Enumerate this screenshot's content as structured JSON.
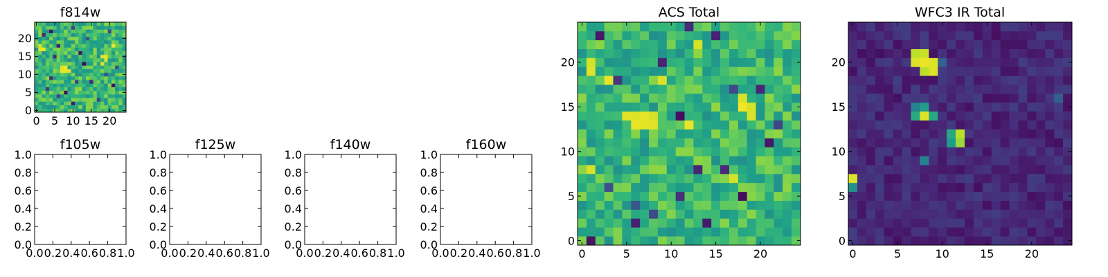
{
  "chart_data": [
    {
      "type": "heatmap",
      "title": "f814w",
      "grid_size": [
        25,
        25
      ],
      "colormap": "viridis",
      "value_range": [
        0,
        1
      ],
      "xlim": [
        -0.5,
        24.5
      ],
      "ylim": [
        -0.5,
        24.5
      ],
      "xticks": [
        0,
        5,
        10,
        15,
        20
      ],
      "yticks": [
        0,
        5,
        10,
        15,
        20
      ],
      "hot_cells": [
        [
          1,
          18
        ],
        [
          1,
          17
        ],
        [
          2,
          17
        ],
        [
          7,
          12
        ],
        [
          8,
          12
        ],
        [
          7,
          11
        ],
        [
          8,
          11
        ],
        [
          9,
          11
        ],
        [
          18,
          15
        ],
        [
          19,
          15
        ],
        [
          19,
          14
        ],
        [
          18,
          13
        ],
        [
          21,
          18
        ],
        [
          3,
          6
        ]
      ],
      "dark_cells": [
        [
          2,
          21
        ],
        [
          4,
          22
        ],
        [
          10,
          23
        ],
        [
          5,
          15
        ],
        [
          13,
          13
        ],
        [
          3,
          6
        ],
        [
          6,
          4
        ],
        [
          8,
          5
        ],
        [
          15,
          8
        ],
        [
          21,
          7
        ],
        [
          12,
          16
        ],
        [
          19,
          10
        ],
        [
          6,
          18
        ],
        [
          10,
          2
        ],
        [
          17,
          3
        ],
        [
          22,
          12
        ],
        [
          4,
          9
        ],
        [
          14,
          20
        ],
        [
          20,
          22
        ],
        [
          11,
          8
        ]
      ]
    },
    {
      "type": "table",
      "title": "f105w",
      "xlim": [
        0,
        1
      ],
      "ylim": [
        0,
        1
      ],
      "xticks": [
        "0.0",
        "0.2",
        "0.4",
        "0.6",
        "0.8",
        "1.0"
      ],
      "yticks": [
        "0.0",
        "0.2",
        "0.4",
        "0.6",
        "0.8",
        "1.0"
      ]
    },
    {
      "type": "table",
      "title": "f125w",
      "xlim": [
        0,
        1
      ],
      "ylim": [
        0,
        1
      ],
      "xticks": [
        "0.0",
        "0.2",
        "0.4",
        "0.6",
        "0.8",
        "1.0"
      ],
      "yticks": [
        "0.0",
        "0.2",
        "0.4",
        "0.6",
        "0.8",
        "1.0"
      ]
    },
    {
      "type": "table",
      "title": "f140w",
      "xlim": [
        0,
        1
      ],
      "ylim": [
        0,
        1
      ],
      "xticks": [
        "0.0",
        "0.2",
        "0.4",
        "0.6",
        "0.8",
        "1.0"
      ],
      "yticks": [
        "0.0",
        "0.2",
        "0.4",
        "0.6",
        "0.8",
        "1.0"
      ]
    },
    {
      "type": "table",
      "title": "f160w",
      "xlim": [
        0,
        1
      ],
      "ylim": [
        0,
        1
      ],
      "xticks": [
        "0.0",
        "0.2",
        "0.4",
        "0.6",
        "0.8",
        "1.0"
      ],
      "yticks": [
        "0.0",
        "0.2",
        "0.4",
        "0.6",
        "0.8",
        "1.0"
      ]
    },
    {
      "type": "heatmap",
      "title": "ACS Total",
      "grid_size": [
        25,
        25
      ],
      "colormap": "viridis",
      "value_range": [
        0,
        1
      ],
      "xlim": [
        -0.5,
        24.5
      ],
      "ylim": [
        -0.5,
        24.5
      ],
      "xticks": [
        0,
        5,
        10,
        15,
        20
      ],
      "yticks": [
        0,
        5,
        10,
        15,
        20
      ],
      "hot_cells": [
        [
          1,
          20
        ],
        [
          1,
          19
        ],
        [
          3,
          18
        ],
        [
          5,
          14
        ],
        [
          6,
          14
        ],
        [
          7,
          14
        ],
        [
          8,
          14
        ],
        [
          6,
          13
        ],
        [
          7,
          13
        ],
        [
          8,
          13
        ],
        [
          18,
          16
        ],
        [
          18,
          15
        ],
        [
          19,
          15
        ],
        [
          19,
          14
        ],
        [
          16,
          8
        ],
        [
          17,
          7
        ],
        [
          12,
          13
        ],
        [
          13,
          22
        ],
        [
          1,
          8
        ],
        [
          9,
          18
        ]
      ],
      "dark_cells": [
        [
          2,
          23
        ],
        [
          12,
          24
        ],
        [
          4,
          18
        ],
        [
          11,
          14
        ],
        [
          17,
          17
        ],
        [
          20,
          17
        ],
        [
          21,
          11
        ],
        [
          6,
          4
        ],
        [
          8,
          3
        ],
        [
          6,
          2
        ],
        [
          14,
          2
        ],
        [
          13,
          8
        ],
        [
          16,
          8
        ],
        [
          11,
          5
        ],
        [
          18,
          5
        ],
        [
          3,
          6
        ],
        [
          22,
          13
        ],
        [
          9,
          20
        ],
        [
          15,
          23
        ],
        [
          1,
          0
        ]
      ]
    },
    {
      "type": "heatmap",
      "title": "WFC3 IR Total",
      "grid_size": [
        25,
        25
      ],
      "colormap": "viridis",
      "value_range": [
        0,
        1
      ],
      "xlim": [
        -0.5,
        24.5
      ],
      "ylim": [
        -0.5,
        24.5
      ],
      "xticks": [
        0,
        5,
        10,
        15,
        20
      ],
      "yticks": [
        0,
        5,
        10,
        15,
        20
      ],
      "hot_cells": [
        [
          7,
          21,
          0.9
        ],
        [
          8,
          21,
          0.92
        ],
        [
          7,
          20,
          0.95
        ],
        [
          8,
          20,
          0.97
        ],
        [
          9,
          20,
          0.95
        ],
        [
          8,
          19,
          0.9
        ],
        [
          9,
          19,
          0.95
        ],
        [
          8,
          14,
          0.95
        ],
        [
          7,
          14,
          0.6
        ],
        [
          9,
          14,
          0.6
        ],
        [
          8,
          15,
          0.55
        ],
        [
          7,
          15,
          0.45
        ],
        [
          12,
          12,
          0.9
        ],
        [
          11,
          12,
          0.6
        ],
        [
          12,
          11,
          0.85
        ],
        [
          11,
          11,
          0.55
        ],
        [
          0,
          7,
          0.95
        ],
        [
          0,
          6,
          0.5
        ],
        [
          8,
          9,
          0.45
        ],
        [
          23,
          16,
          0.3
        ],
        [
          10,
          20,
          0.3
        ]
      ],
      "dark_cells": []
    }
  ]
}
